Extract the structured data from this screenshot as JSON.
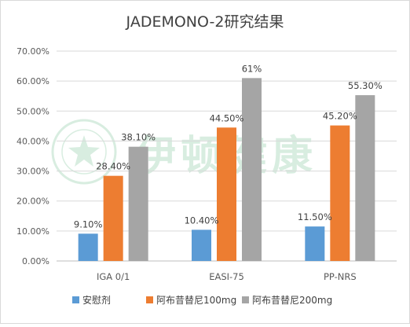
{
  "chart_data": {
    "type": "bar",
    "title": "JADEMONO-2研究结果",
    "categories": [
      "IGA 0/1",
      "EASI-75",
      "PP-NRS"
    ],
    "series": [
      {
        "name": "安慰剂",
        "values": [
          9.1,
          10.4,
          11.5
        ],
        "labels": [
          "9.10%",
          "10.40%",
          "11.50%"
        ],
        "color": "#5b9bd5"
      },
      {
        "name": "阿布昔替尼100mg",
        "values": [
          28.4,
          44.5,
          45.2
        ],
        "labels": [
          "28.40%",
          "44.50%",
          "45.20%"
        ],
        "color": "#ed7d31"
      },
      {
        "name": "阿布昔替尼200mg",
        "values": [
          38.1,
          61,
          55.3
        ],
        "labels": [
          "38.10%",
          "61%",
          "55.30%"
        ],
        "color": "#a5a5a5"
      }
    ],
    "ylim": [
      0,
      70
    ],
    "yticks": [
      "0.00%",
      "10.00%",
      "20.00%",
      "30.00%",
      "40.00%",
      "50.00%",
      "60.00%",
      "70.00%"
    ],
    "grid": true,
    "legend_position": "bottom",
    "watermark": "伊顿健康"
  }
}
